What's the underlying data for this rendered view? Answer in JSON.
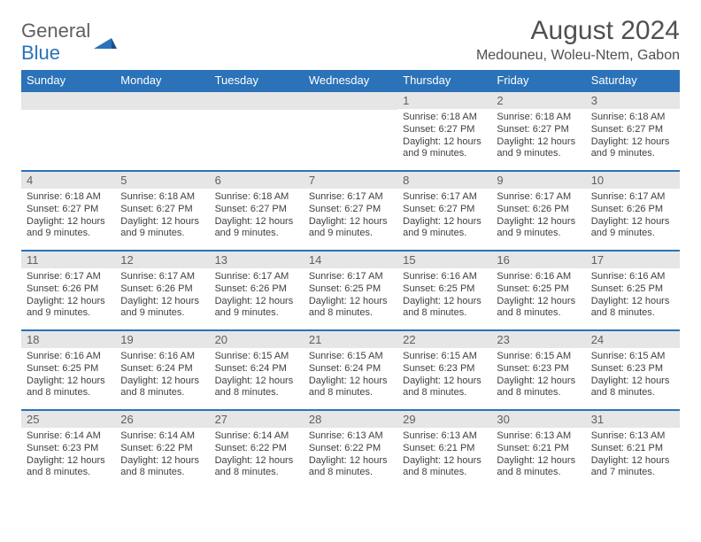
{
  "logo": {
    "textTop": "General",
    "textBottom": "Blue",
    "markColor": "#2b72b8"
  },
  "header": {
    "monthTitle": "August 2024",
    "location": "Medouneu, Woleu-Ntem, Gabon"
  },
  "colors": {
    "headerBar": "#2b72b8",
    "dayBarBg": "#e6e6e6",
    "dayBarBorder": "#2b72b8",
    "text": "#404040",
    "titleText": "#505050"
  },
  "dayHeaders": [
    "Sunday",
    "Monday",
    "Tuesday",
    "Wednesday",
    "Thursday",
    "Friday",
    "Saturday"
  ],
  "startOffset": 4,
  "days": [
    {
      "n": 1,
      "sunrise": "6:18 AM",
      "sunset": "6:27 PM",
      "daylight": "12 hours and 9 minutes."
    },
    {
      "n": 2,
      "sunrise": "6:18 AM",
      "sunset": "6:27 PM",
      "daylight": "12 hours and 9 minutes."
    },
    {
      "n": 3,
      "sunrise": "6:18 AM",
      "sunset": "6:27 PM",
      "daylight": "12 hours and 9 minutes."
    },
    {
      "n": 4,
      "sunrise": "6:18 AM",
      "sunset": "6:27 PM",
      "daylight": "12 hours and 9 minutes."
    },
    {
      "n": 5,
      "sunrise": "6:18 AM",
      "sunset": "6:27 PM",
      "daylight": "12 hours and 9 minutes."
    },
    {
      "n": 6,
      "sunrise": "6:18 AM",
      "sunset": "6:27 PM",
      "daylight": "12 hours and 9 minutes."
    },
    {
      "n": 7,
      "sunrise": "6:17 AM",
      "sunset": "6:27 PM",
      "daylight": "12 hours and 9 minutes."
    },
    {
      "n": 8,
      "sunrise": "6:17 AM",
      "sunset": "6:27 PM",
      "daylight": "12 hours and 9 minutes."
    },
    {
      "n": 9,
      "sunrise": "6:17 AM",
      "sunset": "6:26 PM",
      "daylight": "12 hours and 9 minutes."
    },
    {
      "n": 10,
      "sunrise": "6:17 AM",
      "sunset": "6:26 PM",
      "daylight": "12 hours and 9 minutes."
    },
    {
      "n": 11,
      "sunrise": "6:17 AM",
      "sunset": "6:26 PM",
      "daylight": "12 hours and 9 minutes."
    },
    {
      "n": 12,
      "sunrise": "6:17 AM",
      "sunset": "6:26 PM",
      "daylight": "12 hours and 9 minutes."
    },
    {
      "n": 13,
      "sunrise": "6:17 AM",
      "sunset": "6:26 PM",
      "daylight": "12 hours and 9 minutes."
    },
    {
      "n": 14,
      "sunrise": "6:17 AM",
      "sunset": "6:25 PM",
      "daylight": "12 hours and 8 minutes."
    },
    {
      "n": 15,
      "sunrise": "6:16 AM",
      "sunset": "6:25 PM",
      "daylight": "12 hours and 8 minutes."
    },
    {
      "n": 16,
      "sunrise": "6:16 AM",
      "sunset": "6:25 PM",
      "daylight": "12 hours and 8 minutes."
    },
    {
      "n": 17,
      "sunrise": "6:16 AM",
      "sunset": "6:25 PM",
      "daylight": "12 hours and 8 minutes."
    },
    {
      "n": 18,
      "sunrise": "6:16 AM",
      "sunset": "6:25 PM",
      "daylight": "12 hours and 8 minutes."
    },
    {
      "n": 19,
      "sunrise": "6:16 AM",
      "sunset": "6:24 PM",
      "daylight": "12 hours and 8 minutes."
    },
    {
      "n": 20,
      "sunrise": "6:15 AM",
      "sunset": "6:24 PM",
      "daylight": "12 hours and 8 minutes."
    },
    {
      "n": 21,
      "sunrise": "6:15 AM",
      "sunset": "6:24 PM",
      "daylight": "12 hours and 8 minutes."
    },
    {
      "n": 22,
      "sunrise": "6:15 AM",
      "sunset": "6:23 PM",
      "daylight": "12 hours and 8 minutes."
    },
    {
      "n": 23,
      "sunrise": "6:15 AM",
      "sunset": "6:23 PM",
      "daylight": "12 hours and 8 minutes."
    },
    {
      "n": 24,
      "sunrise": "6:15 AM",
      "sunset": "6:23 PM",
      "daylight": "12 hours and 8 minutes."
    },
    {
      "n": 25,
      "sunrise": "6:14 AM",
      "sunset": "6:23 PM",
      "daylight": "12 hours and 8 minutes."
    },
    {
      "n": 26,
      "sunrise": "6:14 AM",
      "sunset": "6:22 PM",
      "daylight": "12 hours and 8 minutes."
    },
    {
      "n": 27,
      "sunrise": "6:14 AM",
      "sunset": "6:22 PM",
      "daylight": "12 hours and 8 minutes."
    },
    {
      "n": 28,
      "sunrise": "6:13 AM",
      "sunset": "6:22 PM",
      "daylight": "12 hours and 8 minutes."
    },
    {
      "n": 29,
      "sunrise": "6:13 AM",
      "sunset": "6:21 PM",
      "daylight": "12 hours and 8 minutes."
    },
    {
      "n": 30,
      "sunrise": "6:13 AM",
      "sunset": "6:21 PM",
      "daylight": "12 hours and 8 minutes."
    },
    {
      "n": 31,
      "sunrise": "6:13 AM",
      "sunset": "6:21 PM",
      "daylight": "12 hours and 7 minutes."
    }
  ],
  "labels": {
    "sunrise": "Sunrise:",
    "sunset": "Sunset:",
    "daylight": "Daylight:"
  }
}
